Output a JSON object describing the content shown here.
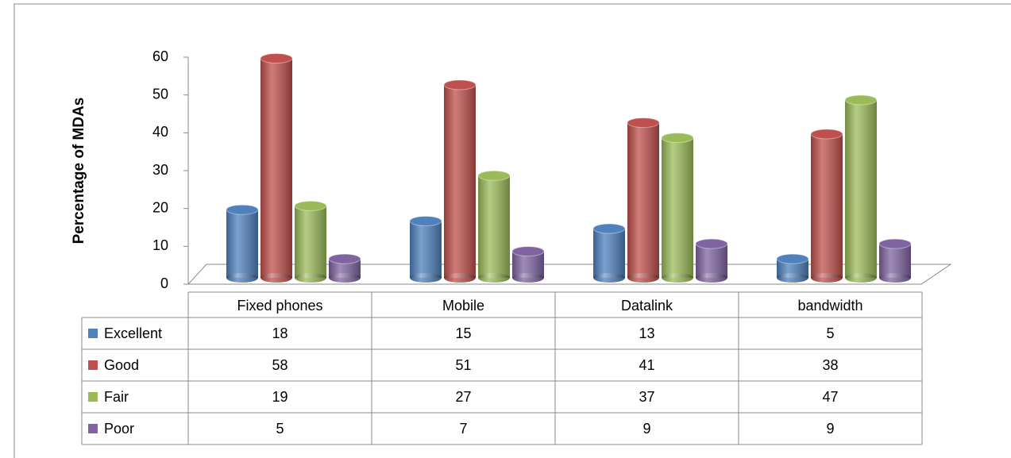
{
  "chart_data": {
    "type": "bar3d",
    "y_label": "Percentage of MDAs",
    "categories": [
      "Fixed phones",
      "Mobile",
      "Datalink",
      "bandwidth"
    ],
    "series": [
      {
        "name": "Excellent",
        "color": "#4f81bd",
        "values": [
          18,
          15,
          13,
          5
        ]
      },
      {
        "name": "Good",
        "color": "#c0504d",
        "values": [
          58,
          51,
          41,
          38
        ]
      },
      {
        "name": "Fair",
        "color": "#9bbb59",
        "values": [
          19,
          27,
          37,
          47
        ]
      },
      {
        "name": "Poor",
        "color": "#8064a2",
        "values": [
          5,
          7,
          9,
          9
        ]
      }
    ],
    "ylim": [
      0,
      60
    ],
    "yticks": [
      0,
      10,
      20,
      30,
      40,
      50,
      60
    ],
    "data_table": true
  }
}
